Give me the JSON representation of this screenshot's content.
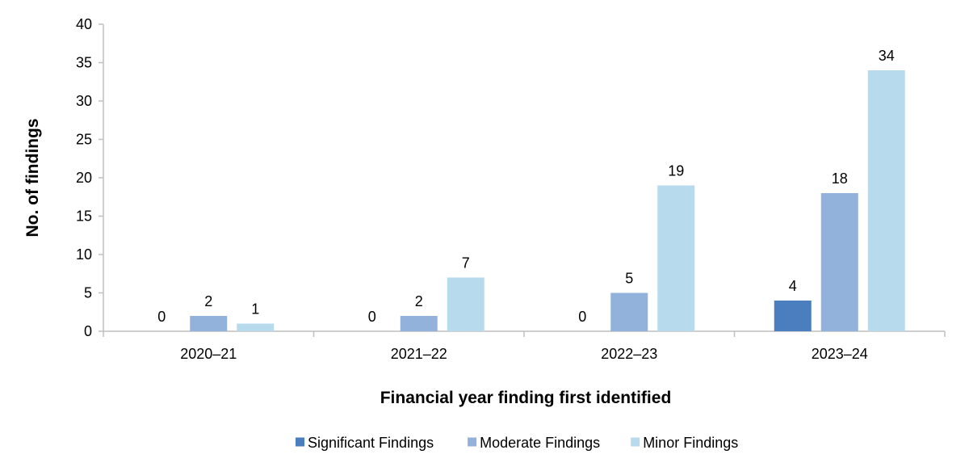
{
  "chart_data": {
    "type": "bar",
    "categories": [
      "2020–21",
      "2021–22",
      "2022–23",
      "2023–24"
    ],
    "series": [
      {
        "name": "Significant Findings",
        "values": [
          0,
          0,
          0,
          4
        ],
        "color": "#4a7ebf"
      },
      {
        "name": "Moderate Findings",
        "values": [
          2,
          2,
          5,
          18
        ],
        "color": "#92b2db"
      },
      {
        "name": "Minor Findings",
        "values": [
          1,
          7,
          19,
          34
        ],
        "color": "#b7dbed"
      }
    ],
    "xlabel": "Financial year finding first identified",
    "ylabel": "No. of findings",
    "ylim": [
      0,
      40
    ],
    "yticks": [
      0,
      5,
      10,
      15,
      20,
      25,
      30,
      35,
      40
    ],
    "grid": false,
    "legend": "bottom",
    "axis_color": "#bfbfbf"
  }
}
